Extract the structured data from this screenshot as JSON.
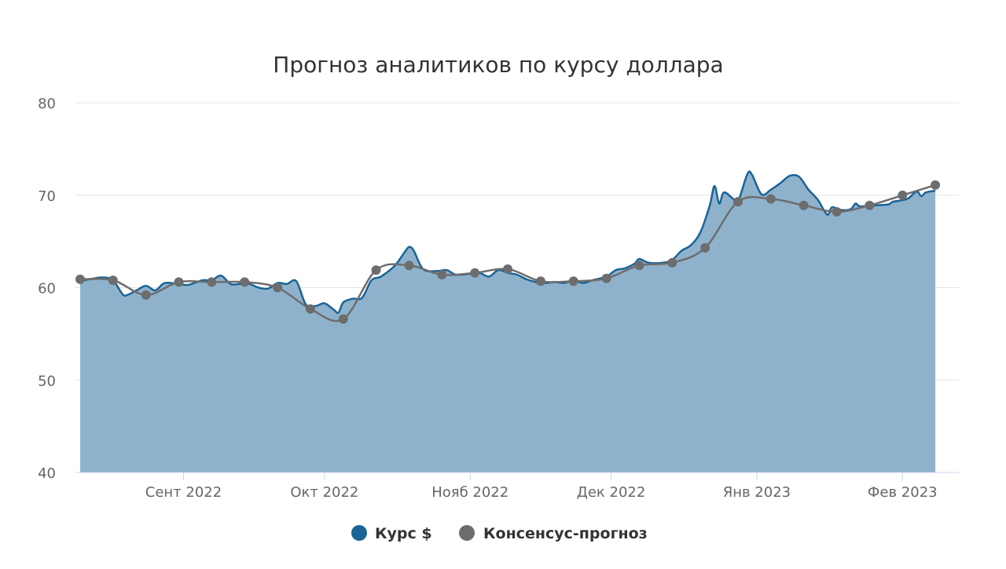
{
  "chart_data": {
    "type": "area",
    "title": "Прогноз аналитиков по курсу доллара",
    "xlabel": "",
    "ylabel": "",
    "ylim": [
      40,
      80
    ],
    "y_ticks": [
      "80",
      "70",
      "60",
      "50",
      "40"
    ],
    "x_range": [
      "2022-08-09",
      "2023-02-13"
    ],
    "x_ticks": [
      {
        "label": "Сент 2022",
        "date": "2022-09-01"
      },
      {
        "label": "Окт 2022",
        "date": "2022-10-01"
      },
      {
        "label": "Нояб 2022",
        "date": "2022-11-01"
      },
      {
        "label": "Дек 2022",
        "date": "2022-12-01"
      },
      {
        "label": "Янв 2023",
        "date": "2023-01-01"
      },
      {
        "label": "Фев 2023",
        "date": "2023-02-01"
      }
    ],
    "grid": true,
    "legend_position": "bottom-center",
    "series": [
      {
        "name": "Курс $",
        "kind": "area",
        "color": "#1a6496",
        "fill": "#8fb2cc",
        "points": [
          [
            "2022-08-10",
            60.7
          ],
          [
            "2022-08-13",
            61.0
          ],
          [
            "2022-08-15",
            61.1
          ],
          [
            "2022-08-17",
            60.8
          ],
          [
            "2022-08-19",
            59.3
          ],
          [
            "2022-08-20",
            59.2
          ],
          [
            "2022-08-22",
            59.7
          ],
          [
            "2022-08-24",
            60.2
          ],
          [
            "2022-08-26",
            59.7
          ],
          [
            "2022-08-28",
            60.5
          ],
          [
            "2022-08-31",
            60.4
          ],
          [
            "2022-09-02",
            60.3
          ],
          [
            "2022-09-05",
            60.8
          ],
          [
            "2022-09-07",
            60.8
          ],
          [
            "2022-09-09",
            61.3
          ],
          [
            "2022-09-11",
            60.4
          ],
          [
            "2022-09-13",
            60.4
          ],
          [
            "2022-09-15",
            60.4
          ],
          [
            "2022-09-17",
            60.0
          ],
          [
            "2022-09-19",
            59.9
          ],
          [
            "2022-09-21",
            60.5
          ],
          [
            "2022-09-23",
            60.4
          ],
          [
            "2022-09-25",
            60.7
          ],
          [
            "2022-09-27",
            58.2
          ],
          [
            "2022-09-29",
            58.0
          ],
          [
            "2022-10-01",
            58.3
          ],
          [
            "2022-10-03",
            57.6
          ],
          [
            "2022-10-04",
            57.3
          ],
          [
            "2022-10-05",
            58.4
          ],
          [
            "2022-10-07",
            58.8
          ],
          [
            "2022-10-09",
            58.9
          ],
          [
            "2022-10-11",
            60.8
          ],
          [
            "2022-10-13",
            61.2
          ],
          [
            "2022-10-16",
            62.4
          ],
          [
            "2022-10-18",
            63.8
          ],
          [
            "2022-10-19",
            64.4
          ],
          [
            "2022-10-20",
            64.0
          ],
          [
            "2022-10-22",
            62.0
          ],
          [
            "2022-10-25",
            61.8
          ],
          [
            "2022-10-27",
            61.9
          ],
          [
            "2022-10-29",
            61.4
          ],
          [
            "2022-11-01",
            61.5
          ],
          [
            "2022-11-03",
            61.6
          ],
          [
            "2022-11-05",
            61.2
          ],
          [
            "2022-11-07",
            61.9
          ],
          [
            "2022-11-09",
            61.6
          ],
          [
            "2022-11-11",
            61.4
          ],
          [
            "2022-11-13",
            60.9
          ],
          [
            "2022-11-15",
            60.6
          ],
          [
            "2022-11-17",
            60.5
          ],
          [
            "2022-11-19",
            60.6
          ],
          [
            "2022-11-21",
            60.5
          ],
          [
            "2022-11-23",
            60.8
          ],
          [
            "2022-11-25",
            60.5
          ],
          [
            "2022-11-27",
            60.8
          ],
          [
            "2022-11-30",
            61.2
          ],
          [
            "2022-12-02",
            61.9
          ],
          [
            "2022-12-04",
            62.1
          ],
          [
            "2022-12-06",
            62.6
          ],
          [
            "2022-12-07",
            63.1
          ],
          [
            "2022-12-09",
            62.7
          ],
          [
            "2022-12-12",
            62.7
          ],
          [
            "2022-12-14",
            63.0
          ],
          [
            "2022-12-16",
            64.0
          ],
          [
            "2022-12-18",
            64.6
          ],
          [
            "2022-12-20",
            66.0
          ],
          [
            "2022-12-22",
            68.9
          ],
          [
            "2022-12-23",
            71.0
          ],
          [
            "2022-12-24",
            69.1
          ],
          [
            "2022-12-25",
            70.3
          ],
          [
            "2022-12-27",
            69.6
          ],
          [
            "2022-12-28",
            69.3
          ],
          [
            "2022-12-30",
            72.3
          ],
          [
            "2022-12-31",
            72.2
          ],
          [
            "2023-01-02",
            70.1
          ],
          [
            "2023-01-04",
            70.6
          ],
          [
            "2023-01-06",
            71.3
          ],
          [
            "2023-01-08",
            72.1
          ],
          [
            "2023-01-10",
            72.0
          ],
          [
            "2023-01-12",
            70.6
          ],
          [
            "2023-01-14",
            69.5
          ],
          [
            "2023-01-16",
            67.9
          ],
          [
            "2023-01-17",
            68.7
          ],
          [
            "2023-01-19",
            68.4
          ],
          [
            "2023-01-21",
            68.5
          ],
          [
            "2023-01-22",
            69.1
          ],
          [
            "2023-01-23",
            68.8
          ],
          [
            "2023-01-26",
            68.9
          ],
          [
            "2023-01-29",
            69.0
          ],
          [
            "2023-01-30",
            69.3
          ],
          [
            "2023-02-02",
            69.6
          ],
          [
            "2023-02-04",
            70.4
          ],
          [
            "2023-02-05",
            69.9
          ],
          [
            "2023-02-06",
            70.3
          ],
          [
            "2023-02-08",
            70.5
          ]
        ]
      },
      {
        "name": "Консенсус-прогноз",
        "kind": "line-markers",
        "color": "#6d6d6d",
        "points": [
          [
            "2022-08-10",
            60.9
          ],
          [
            "2022-08-17",
            60.8
          ],
          [
            "2022-08-24",
            59.2
          ],
          [
            "2022-08-31",
            60.6
          ],
          [
            "2022-09-07",
            60.6
          ],
          [
            "2022-09-14",
            60.6
          ],
          [
            "2022-09-21",
            60.0
          ],
          [
            "2022-09-28",
            57.7
          ],
          [
            "2022-10-05",
            56.6
          ],
          [
            "2022-10-12",
            61.9
          ],
          [
            "2022-10-19",
            62.4
          ],
          [
            "2022-10-26",
            61.4
          ],
          [
            "2022-11-02",
            61.6
          ],
          [
            "2022-11-09",
            62.0
          ],
          [
            "2022-11-16",
            60.7
          ],
          [
            "2022-11-23",
            60.7
          ],
          [
            "2022-11-30",
            61.0
          ],
          [
            "2022-12-07",
            62.4
          ],
          [
            "2022-12-14",
            62.7
          ],
          [
            "2022-12-21",
            64.3
          ],
          [
            "2022-12-28",
            69.3
          ],
          [
            "2023-01-04",
            69.6
          ],
          [
            "2023-01-11",
            68.9
          ],
          [
            "2023-01-18",
            68.2
          ],
          [
            "2023-01-25",
            68.9
          ],
          [
            "2023-02-01",
            70.0
          ],
          [
            "2023-02-08",
            71.1
          ]
        ]
      }
    ]
  }
}
